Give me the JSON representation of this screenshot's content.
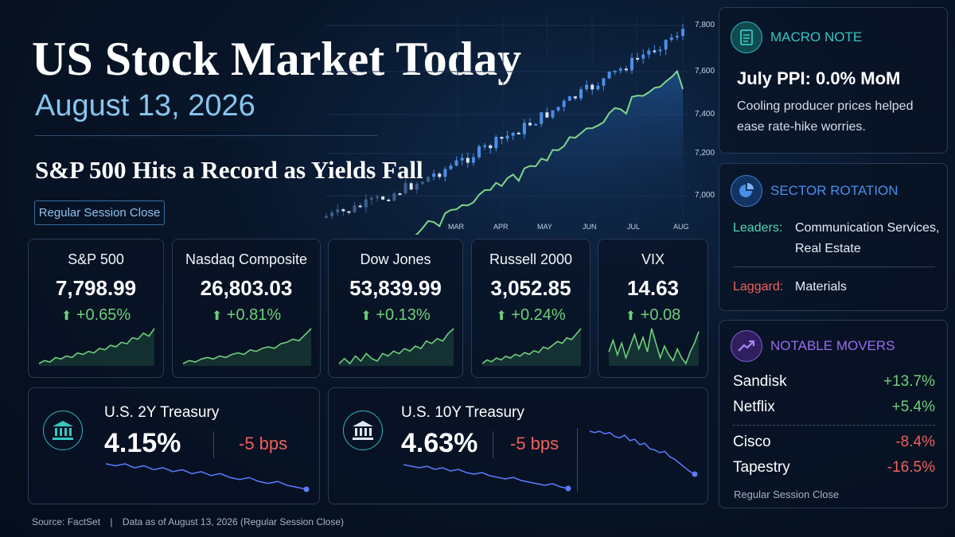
{
  "header": {
    "title": "US Stock Market Today",
    "date": "August 13, 2026",
    "headline": "S&P 500 Hits a Record as Yields Fall",
    "session_badge": "Regular Session Close"
  },
  "hero_chart": {
    "x_ticks": [
      "MAR",
      "APR",
      "MAY",
      "JUN",
      "JUL",
      "AUG"
    ],
    "y_ticks": [
      "7,800",
      "7,600",
      "7,400",
      "7,200",
      "7,000"
    ]
  },
  "indices": [
    {
      "name": "S&P 500",
      "value": "7,798.99",
      "change": "+0.65%",
      "spark": [
        10,
        12,
        11,
        14,
        13,
        15,
        14,
        17,
        16,
        18,
        17,
        20,
        19,
        22,
        21,
        24,
        23,
        27,
        26,
        30,
        28,
        33
      ]
    },
    {
      "name": "Nasdaq Composite",
      "value": "26,803.03",
      "change": "+0.81%",
      "spark": [
        8,
        10,
        9,
        11,
        12,
        11,
        13,
        12,
        14,
        15,
        14,
        17,
        16,
        18,
        19,
        18,
        21,
        22,
        24,
        23,
        27,
        31
      ]
    },
    {
      "name": "Dow Jones",
      "value": "53,839.99",
      "change": "+0.13%",
      "spark": [
        12,
        14,
        12,
        15,
        13,
        16,
        14,
        13,
        16,
        15,
        17,
        16,
        18,
        17,
        19,
        18,
        21,
        20,
        22,
        21,
        24,
        26
      ]
    },
    {
      "name": "Russell 2000",
      "value": "3,052.85",
      "change": "+0.24%",
      "spark": [
        10,
        12,
        11,
        13,
        12,
        14,
        13,
        15,
        14,
        16,
        15,
        17,
        16,
        19,
        18,
        20,
        22,
        21,
        24,
        23,
        26,
        29
      ]
    },
    {
      "name": "VIX",
      "value": "14.63",
      "change": "+0.08",
      "spark": [
        16,
        20,
        15,
        19,
        14,
        18,
        22,
        17,
        21,
        16,
        24,
        19,
        14,
        18,
        15,
        13,
        17,
        14,
        12,
        16,
        19,
        23
      ]
    }
  ],
  "treasuries": [
    {
      "name": "U.S. 2Y Treasury",
      "yield": "4.15%",
      "change": "-5 bps",
      "spark": [
        30,
        29,
        30,
        28,
        29,
        27,
        28,
        26,
        27,
        25,
        26,
        24,
        25,
        23,
        22,
        23,
        21,
        20,
        21,
        19,
        18,
        17
      ]
    },
    {
      "name": "U.S. 10Y Treasury",
      "yield": "4.63%",
      "change": "-5 bps",
      "spark": [
        30,
        29,
        28,
        29,
        27,
        28,
        26,
        27,
        25,
        24,
        25,
        23,
        22,
        21,
        22,
        20,
        19,
        18,
        17,
        18,
        16,
        15
      ],
      "spark2": [
        40,
        39,
        40,
        38,
        39,
        36,
        35,
        37,
        33,
        34,
        30,
        31,
        27,
        26,
        24,
        25,
        21,
        19,
        16,
        13,
        10,
        8
      ]
    }
  ],
  "macro_note": {
    "label": "MACRO NOTE",
    "headline": "July PPI: 0.0% MoM",
    "body_line1": "Cooling producer prices helped",
    "body_line2": "ease rate-hike worries."
  },
  "sector_rotation": {
    "label": "SECTOR ROTATION",
    "leaders_label": "Leaders:",
    "leaders_line1": "Communication Services,",
    "leaders_line2": "Real Estate",
    "laggard_label": "Laggard:",
    "laggard_value": "Materials"
  },
  "notable_movers": {
    "label": "NOTABLE MOVERS",
    "gainers": [
      {
        "name": "Sandisk",
        "change": "+13.7%"
      },
      {
        "name": "Netflix",
        "change": "+5.4%"
      }
    ],
    "losers": [
      {
        "name": "Cisco",
        "change": "-8.4%"
      },
      {
        "name": "Tapestry",
        "change": "-16.5%"
      }
    ],
    "footnote": "Regular Session Close"
  },
  "footer": {
    "source": "Source: FactSet",
    "as_of": "Data as of August 13, 2026 (Regular Session Close)"
  },
  "colors": {
    "up": "#6fd07b",
    "down": "#f0605c",
    "accent_teal": "#34c7c3",
    "accent_blue": "#4a8fe8",
    "accent_purple": "#9b6bf0",
    "yield_line": "#5b7cff"
  },
  "icons": {
    "macro": "document-icon",
    "sector": "pie-chart-icon",
    "movers": "trend-up-icon",
    "treasury": "bank-icon",
    "up_arrow": "arrow-up-icon"
  }
}
